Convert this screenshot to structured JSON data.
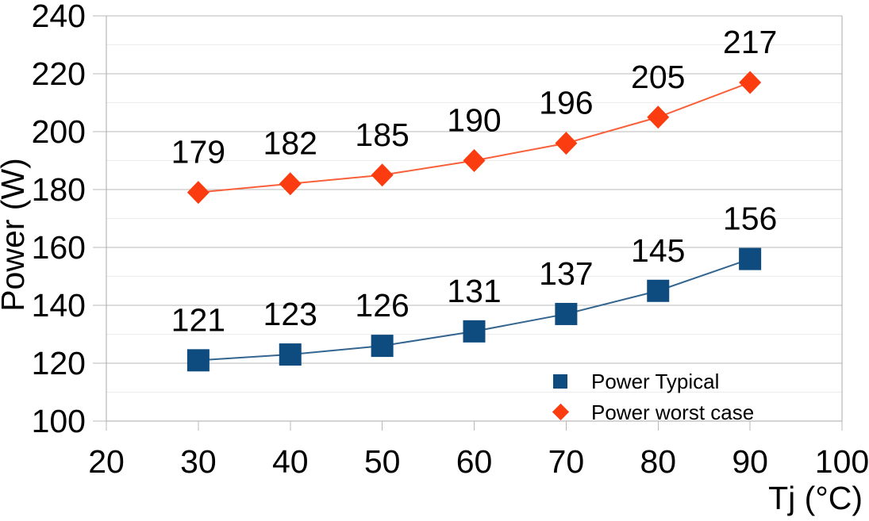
{
  "chart_data": {
    "type": "line",
    "title": "",
    "xlabel": "Tj (°C)",
    "ylabel": "Power (W)",
    "xlim": [
      20,
      100
    ],
    "ylim": [
      100,
      240
    ],
    "x_ticks": [
      20,
      30,
      40,
      50,
      60,
      70,
      80,
      90,
      100
    ],
    "y_ticks": [
      100,
      120,
      140,
      160,
      180,
      200,
      220,
      240
    ],
    "y_minor_step": 10,
    "grid": "horizontal major and minor gridlines",
    "legend_position": "inside-bottom-right",
    "data_labels": "value above each point",
    "x": [
      30,
      40,
      50,
      60,
      70,
      80,
      90
    ],
    "series": [
      {
        "name": "Power Typical",
        "marker": "square",
        "color": "#0e4b7e",
        "line_color": "#33658f",
        "values": [
          121,
          123,
          126,
          131,
          137,
          145,
          156
        ]
      },
      {
        "name": "Power worst case",
        "marker": "diamond",
        "color": "#fa3c10",
        "line_color": "#f9603a",
        "values": [
          179,
          182,
          185,
          190,
          196,
          205,
          217
        ]
      }
    ]
  },
  "style": {
    "background": "#ffffff",
    "grid_major": "#b9b9b9",
    "grid_minor": "#ececec",
    "axis": "#a8a8a8",
    "text": "#000000"
  }
}
